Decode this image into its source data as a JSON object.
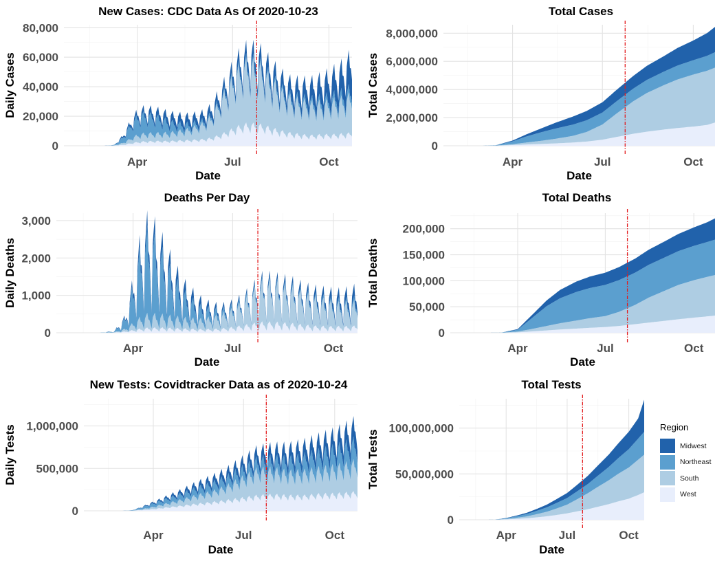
{
  "legend": {
    "title": "Region",
    "items": [
      {
        "label": "Midwest",
        "color": "#2162ab"
      },
      {
        "label": "Northeast",
        "color": "#5b9fcf"
      },
      {
        "label": "South",
        "color": "#aecde3"
      },
      {
        "label": "West",
        "color": "#e8eefc"
      }
    ]
  },
  "marker_color": "#e31a1c",
  "chart_data": [
    {
      "id": "new-cases",
      "type": "area",
      "stacked": true,
      "title": "New Cases: CDC Data As Of 2020-10-23",
      "xlabel": "Date",
      "ylabel": "Daily Cases",
      "x_range": [
        "2020-01-22",
        "2020-10-23"
      ],
      "ylim": [
        0,
        82000
      ],
      "yticks": [
        0,
        20000,
        40000,
        60000,
        80000
      ],
      "ytick_labels": [
        "0",
        "20,000",
        "40,000",
        "60,000",
        "80,000"
      ],
      "xticks": [
        "2020-04-01",
        "2020-07-01",
        "2020-10-01"
      ],
      "xtick_labels": [
        "Apr",
        "Jul",
        "Oct"
      ],
      "vline": "2020-07-24",
      "weekly_dip": 0.38,
      "spike_day": 7,
      "x": [
        "2020-03-01",
        "2020-03-10",
        "2020-03-18",
        "2020-03-25",
        "2020-04-01",
        "2020-04-08",
        "2020-04-15",
        "2020-04-22",
        "2020-05-01",
        "2020-05-10",
        "2020-05-20",
        "2020-06-01",
        "2020-06-10",
        "2020-06-20",
        "2020-06-28",
        "2020-07-06",
        "2020-07-14",
        "2020-07-20",
        "2020-07-28",
        "2020-08-05",
        "2020-08-15",
        "2020-08-25",
        "2020-09-05",
        "2020-09-15",
        "2020-09-25",
        "2020-10-05",
        "2020-10-15",
        "2020-10-23"
      ],
      "series": [
        {
          "name": "West",
          "values": [
            10,
            100,
            600,
            1500,
            2300,
            2800,
            2900,
            3000,
            3000,
            3300,
            3600,
            4000,
            4800,
            7000,
            9500,
            12000,
            13500,
            13500,
            13000,
            11500,
            9500,
            8000,
            7000,
            6500,
            7000,
            7000,
            7500,
            8000
          ]
        },
        {
          "name": "South",
          "values": [
            10,
            150,
            1200,
            2800,
            4500,
            5000,
            5000,
            5000,
            5200,
            6000,
            7000,
            9500,
            13000,
            22000,
            29000,
            35000,
            38000,
            38000,
            36000,
            31000,
            26000,
            22000,
            21000,
            20000,
            20000,
            21000,
            22000,
            24000
          ]
        },
        {
          "name": "Northeast",
          "values": [
            10,
            200,
            3500,
            8500,
            12000,
            12500,
            11500,
            10000,
            7500,
            5000,
            3500,
            2200,
            1800,
            1700,
            1800,
            2000,
            2200,
            2300,
            2400,
            2400,
            2300,
            2400,
            2700,
            3000,
            3500,
            4000,
            4500,
            5000
          ]
        },
        {
          "name": "Midwest",
          "values": [
            10,
            100,
            1000,
            2000,
            3000,
            3500,
            4000,
            4500,
            5000,
            5500,
            5200,
            5000,
            5000,
            5500,
            6000,
            7000,
            7500,
            7800,
            8000,
            8500,
            8500,
            9000,
            10000,
            11500,
            13000,
            15000,
            17500,
            21000
          ]
        }
      ]
    },
    {
      "id": "total-cases",
      "type": "area",
      "stacked": true,
      "title": "Total Cases",
      "xlabel": "Date",
      "ylabel": "Total Cases",
      "x_range": [
        "2020-01-22",
        "2020-10-23"
      ],
      "ylim": [
        0,
        8600000
      ],
      "yticks": [
        0,
        2000000,
        4000000,
        6000000,
        8000000
      ],
      "ytick_labels": [
        "0",
        "2,000,000",
        "4,000,000",
        "6,000,000",
        "8,000,000"
      ],
      "xticks": [
        "2020-04-01",
        "2020-07-01",
        "2020-10-01"
      ],
      "xtick_labels": [
        "Apr",
        "Jul",
        "Oct"
      ],
      "vline": "2020-07-24",
      "x": [
        "2020-03-01",
        "2020-03-15",
        "2020-04-01",
        "2020-04-15",
        "2020-05-01",
        "2020-05-15",
        "2020-06-01",
        "2020-06-15",
        "2020-07-01",
        "2020-07-15",
        "2020-08-01",
        "2020-08-15",
        "2020-09-01",
        "2020-09-15",
        "2020-10-01",
        "2020-10-15",
        "2020-10-23"
      ],
      "series": [
        {
          "name": "West",
          "values": [
            0,
            5000,
            50000,
            90000,
            130000,
            170000,
            230000,
            300000,
            430000,
            620000,
            850000,
            1000000,
            1150000,
            1260000,
            1360000,
            1480000,
            1650000
          ]
        },
        {
          "name": "South",
          "values": [
            0,
            5000,
            60000,
            140000,
            230000,
            330000,
            470000,
            680000,
            1080000,
            1650000,
            2300000,
            2750000,
            3150000,
            3450000,
            3700000,
            3850000,
            3900000
          ]
        },
        {
          "name": "Northeast",
          "values": [
            0,
            20000,
            200000,
            430000,
            620000,
            730000,
            800000,
            830000,
            850000,
            870000,
            900000,
            930000,
            960000,
            990000,
            1020000,
            1060000,
            1100000
          ]
        },
        {
          "name": "Midwest",
          "values": [
            0,
            5000,
            60000,
            150000,
            280000,
            420000,
            570000,
            660000,
            730000,
            810000,
            900000,
            1000000,
            1100000,
            1250000,
            1400000,
            1620000,
            1800000
          ]
        }
      ]
    },
    {
      "id": "deaths-per-day",
      "type": "area",
      "stacked": true,
      "title": "Deaths Per Day",
      "xlabel": "Date",
      "ylabel": "Daily Deaths",
      "x_range": [
        "2020-01-22",
        "2020-10-23"
      ],
      "ylim": [
        0,
        3200
      ],
      "yticks": [
        0,
        1000,
        2000,
        3000
      ],
      "ytick_labels": [
        "0",
        "1,000",
        "2,000",
        "3,000"
      ],
      "xticks": [
        "2020-04-01",
        "2020-07-01",
        "2020-10-01"
      ],
      "xtick_labels": [
        "Apr",
        "Jul",
        "Oct"
      ],
      "vline": "2020-07-24",
      "weekly_dip": 0.75,
      "spike_day": 7,
      "x": [
        "2020-03-01",
        "2020-03-15",
        "2020-03-25",
        "2020-04-01",
        "2020-04-08",
        "2020-04-15",
        "2020-04-22",
        "2020-05-01",
        "2020-05-10",
        "2020-05-20",
        "2020-06-01",
        "2020-06-10",
        "2020-06-20",
        "2020-06-30",
        "2020-07-10",
        "2020-07-20",
        "2020-07-28",
        "2020-08-05",
        "2020-08-15",
        "2020-08-25",
        "2020-09-05",
        "2020-09-15",
        "2020-09-25",
        "2020-10-05",
        "2020-10-15",
        "2020-10-23"
      ],
      "series": [
        {
          "name": "West",
          "values": [
            0,
            5,
            30,
            60,
            90,
            110,
            110,
            110,
            100,
            90,
            80,
            80,
            90,
            120,
            160,
            200,
            230,
            230,
            220,
            200,
            170,
            150,
            140,
            140,
            140,
            150
          ]
        },
        {
          "name": "South",
          "values": [
            0,
            10,
            60,
            150,
            250,
            300,
            290,
            270,
            250,
            230,
            220,
            250,
            300,
            380,
            500,
            700,
            850,
            850,
            800,
            750,
            650,
            600,
            550,
            500,
            500,
            520
          ]
        },
        {
          "name": "Northeast",
          "values": [
            0,
            20,
            250,
            800,
            1500,
            1800,
            1600,
            1200,
            800,
            500,
            300,
            200,
            120,
            90,
            70,
            60,
            60,
            55,
            55,
            60,
            60,
            60,
            65,
            70,
            80,
            90
          ]
        },
        {
          "name": "Midwest",
          "values": [
            0,
            5,
            40,
            150,
            250,
            300,
            300,
            300,
            270,
            220,
            170,
            120,
            90,
            80,
            70,
            80,
            100,
            110,
            120,
            130,
            140,
            160,
            180,
            200,
            220,
            250
          ]
        }
      ]
    },
    {
      "id": "total-deaths",
      "type": "area",
      "stacked": true,
      "title": "Total Deaths",
      "xlabel": "Date",
      "ylabel": "Total Deaths",
      "x_range": [
        "2020-01-22",
        "2020-10-23"
      ],
      "ylim": [
        0,
        230000
      ],
      "yticks": [
        0,
        50000,
        100000,
        150000,
        200000
      ],
      "ytick_labels": [
        "0",
        "50,000",
        "100,000",
        "150,000",
        "200,000"
      ],
      "xticks": [
        "2020-04-01",
        "2020-07-01",
        "2020-10-01"
      ],
      "xtick_labels": [
        "Apr",
        "Jul",
        "Oct"
      ],
      "vline": "2020-07-24",
      "x": [
        "2020-03-01",
        "2020-03-15",
        "2020-04-01",
        "2020-04-15",
        "2020-05-01",
        "2020-05-15",
        "2020-06-01",
        "2020-06-15",
        "2020-07-01",
        "2020-07-15",
        "2020-08-01",
        "2020-08-15",
        "2020-09-01",
        "2020-09-15",
        "2020-10-01",
        "2020-10-15",
        "2020-10-23"
      ],
      "series": [
        {
          "name": "West",
          "values": [
            0,
            60,
            800,
            2500,
            4500,
            6300,
            8000,
            9500,
            11000,
            13000,
            16500,
            19500,
            23000,
            26000,
            29000,
            31500,
            33000
          ]
        },
        {
          "name": "South",
          "values": [
            0,
            60,
            1500,
            4500,
            8500,
            12000,
            15500,
            18500,
            21000,
            27000,
            37000,
            48000,
            58000,
            66000,
            72000,
            76000,
            78000
          ]
        },
        {
          "name": "Northeast",
          "values": [
            0,
            150,
            3500,
            20000,
            38000,
            48000,
            55000,
            58000,
            60000,
            61000,
            62000,
            63000,
            64000,
            65000,
            66000,
            67000,
            68000
          ]
        },
        {
          "name": "Midwest",
          "values": [
            0,
            40,
            1200,
            5500,
            11000,
            16000,
            20000,
            22000,
            23500,
            25000,
            27000,
            29000,
            31000,
            33000,
            35500,
            38000,
            41000
          ]
        }
      ]
    },
    {
      "id": "new-tests",
      "type": "area",
      "stacked": true,
      "title": "New Tests: Covidtracker Data as of 2020-10-24",
      "xlabel": "Date",
      "ylabel": "Daily Tests",
      "x_range": [
        "2020-01-22",
        "2020-10-24"
      ],
      "ylim": [
        0,
        1320000
      ],
      "yticks": [
        0,
        500000,
        1000000
      ],
      "ytick_labels": [
        "0",
        "500,000",
        "1,000,000"
      ],
      "xticks": [
        "2020-04-01",
        "2020-07-01",
        "2020-10-01"
      ],
      "xtick_labels": [
        "Apr",
        "Jul",
        "Oct"
      ],
      "vline": "2020-07-24",
      "weekly_dip": 0.3,
      "spike_day": 7,
      "x": [
        "2020-03-01",
        "2020-03-10",
        "2020-03-20",
        "2020-04-01",
        "2020-04-15",
        "2020-05-01",
        "2020-05-15",
        "2020-06-01",
        "2020-06-15",
        "2020-07-01",
        "2020-07-15",
        "2020-08-01",
        "2020-08-15",
        "2020-09-01",
        "2020-09-15",
        "2020-10-01",
        "2020-10-15",
        "2020-10-24"
      ],
      "series": [
        {
          "name": "West",
          "values": [
            100,
            1000,
            8000,
            20000,
            40000,
            60000,
            80000,
            100000,
            120000,
            145000,
            170000,
            180000,
            170000,
            170000,
            185000,
            190000,
            200000,
            210000
          ]
        },
        {
          "name": "South",
          "values": [
            100,
            1000,
            10000,
            25000,
            45000,
            70000,
            95000,
            120000,
            160000,
            230000,
            290000,
            280000,
            260000,
            270000,
            280000,
            300000,
            320000,
            340000
          ]
        },
        {
          "name": "Northeast",
          "values": [
            100,
            2000,
            20000,
            40000,
            55000,
            70000,
            85000,
            100000,
            105000,
            110000,
            115000,
            130000,
            150000,
            170000,
            190000,
            210000,
            230000,
            240000
          ]
        },
        {
          "name": "Midwest",
          "values": [
            100,
            1000,
            5000,
            15000,
            25000,
            40000,
            55000,
            70000,
            85000,
            100000,
            115000,
            130000,
            140000,
            150000,
            160000,
            175000,
            200000,
            220000
          ]
        }
      ]
    },
    {
      "id": "total-tests",
      "type": "area",
      "stacked": true,
      "title": "Total Tests",
      "xlabel": "Date",
      "ylabel": "Total Tests",
      "x_range": [
        "2020-01-22",
        "2020-10-24"
      ],
      "ylim": [
        0,
        132000000
      ],
      "yticks": [
        0,
        50000000,
        100000000
      ],
      "ytick_labels": [
        "0",
        "50,000,000",
        "100,000,000"
      ],
      "xticks": [
        "2020-04-01",
        "2020-07-01",
        "2020-10-01"
      ],
      "xtick_labels": [
        "Apr",
        "Jul",
        "Oct"
      ],
      "vline": "2020-07-24",
      "x": [
        "2020-03-01",
        "2020-03-15",
        "2020-04-01",
        "2020-04-15",
        "2020-05-01",
        "2020-05-15",
        "2020-06-01",
        "2020-06-15",
        "2020-07-01",
        "2020-07-15",
        "2020-08-01",
        "2020-08-15",
        "2020-09-01",
        "2020-09-15",
        "2020-10-01",
        "2020-10-15",
        "2020-10-24"
      ],
      "series": [
        {
          "name": "West",
          "values": [
            0,
            30000,
            400000,
            900000,
            1600000,
            2500000,
            3800000,
            5200000,
            7000000,
            9000000,
            11500000,
            14000000,
            17000000,
            20000000,
            23000000,
            27000000,
            30000000
          ]
        },
        {
          "name": "South",
          "values": [
            0,
            30000,
            500000,
            1100000,
            2000000,
            3300000,
            5000000,
            7000000,
            9500000,
            13000000,
            17500000,
            21500000,
            26000000,
            30000000,
            34000000,
            38500000,
            41000000
          ]
        },
        {
          "name": "Northeast",
          "values": [
            0,
            40000,
            700000,
            1600000,
            2500000,
            3500000,
            4800000,
            6000000,
            7200000,
            8500000,
            10000000,
            12000000,
            14500000,
            17000000,
            20000000,
            23000000,
            25000000
          ]
        },
        {
          "name": "Midwest",
          "values": [
            0,
            20000,
            300000,
            700000,
            1300000,
            2000000,
            3000000,
            4200000,
            5500000,
            7000000,
            9000000,
            11000000,
            13500000,
            16000000,
            19000000,
            22000000,
            35000000
          ]
        }
      ]
    }
  ]
}
